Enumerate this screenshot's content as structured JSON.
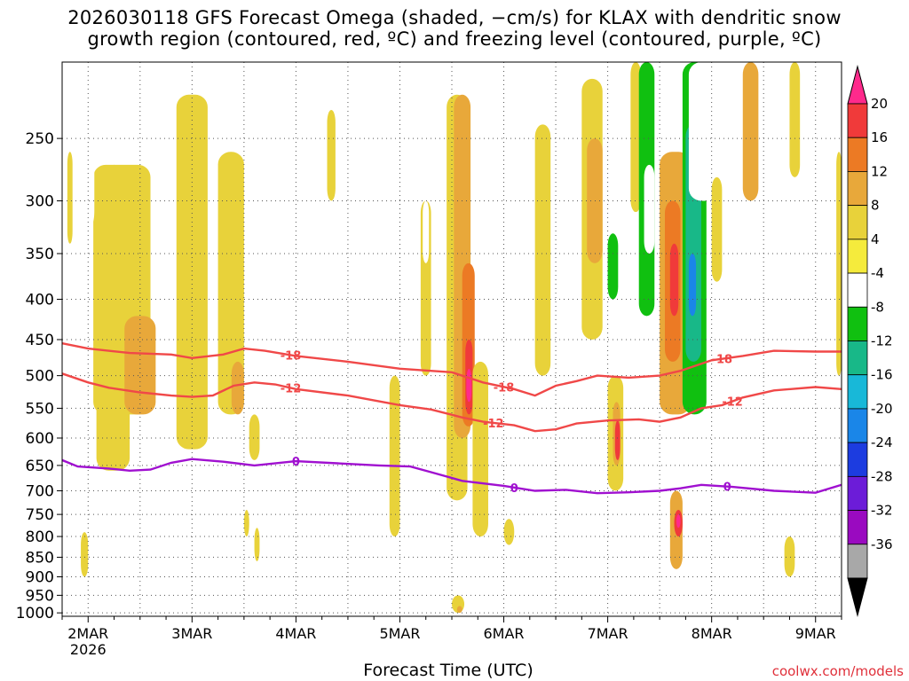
{
  "title": {
    "line1": "2026030118 GFS Forecast Omega (shaded, −cm/s) for KLAX with dendritic snow",
    "line2": "growth region (contoured, red, ºC) and freezing level (contoured, purple, ºC)"
  },
  "xlabel": "Forecast Time (UTC)",
  "credit": "coolwx.com/models",
  "chart_data": {
    "type": "heatmap",
    "title": "2026030118 GFS Forecast Omega (shaded, −cm/s) for KLAX with dendritic snow growth region (contoured, red, ºC) and freezing level (contoured, purple, ºC)",
    "xlabel": "Forecast Time (UTC)",
    "ylabel": "",
    "x_range": [
      1.75,
      9.25
    ],
    "x_unit": "days of March 2026",
    "y_scale": "log-pressure, inverted",
    "y_range_hPa": [
      1010,
      200
    ],
    "grid": true,
    "x_ticks": [
      {
        "value": 2,
        "label": "2MAR",
        "sub": "2026"
      },
      {
        "value": 3,
        "label": "3MAR",
        "sub": ""
      },
      {
        "value": 4,
        "label": "4MAR",
        "sub": ""
      },
      {
        "value": 5,
        "label": "5MAR",
        "sub": ""
      },
      {
        "value": 6,
        "label": "6MAR",
        "sub": ""
      },
      {
        "value": 7,
        "label": "7MAR",
        "sub": ""
      },
      {
        "value": 8,
        "label": "8MAR",
        "sub": ""
      },
      {
        "value": 9,
        "label": "9MAR",
        "sub": ""
      }
    ],
    "y_ticks": [
      250,
      300,
      350,
      400,
      450,
      500,
      550,
      600,
      650,
      700,
      750,
      800,
      850,
      900,
      950,
      1000
    ],
    "colorbar": {
      "levels": [
        "20",
        "16",
        "12",
        "8",
        "4",
        "-4",
        "-8",
        "-12",
        "-16",
        "-20",
        "-24",
        "-28",
        "-32",
        "-36"
      ],
      "colors": [
        "#ff2a8c",
        "#f03a3a",
        "#ec7a24",
        "#e8a83a",
        "#e8d23a",
        "#f5eb3c",
        "#ffffff",
        "#10c010",
        "#18b888",
        "#18b8d8",
        "#1a86e8",
        "#1c3ce0",
        "#6c1cd8",
        "#9a0ac0",
        "#a8a8a8",
        "#000000"
      ]
    },
    "omega_regions": [
      {
        "x": [
          2.08,
          2.4
        ],
        "p": [
          470,
          660
        ],
        "v": 4
      },
      {
        "x": [
          2.2,
          2.3
        ],
        "p": [
          270,
          540
        ],
        "v": 8
      },
      {
        "x": [
          2.15,
          2.3
        ],
        "p": [
          380,
          460
        ],
        "v": 8
      },
      {
        "x": [
          2.05,
          2.6
        ],
        "p": [
          270,
          560
        ],
        "v": 4
      },
      {
        "x": [
          2.35,
          2.65
        ],
        "p": [
          420,
          560
        ],
        "v": 8
      },
      {
        "x": [
          1.93,
          2.0
        ],
        "p": [
          790,
          900
        ],
        "v": 4
      },
      {
        "x": [
          2.22,
          2.3
        ],
        "p": [
          740,
          950
        ],
        "v": -8
      },
      {
        "x": [
          1.8,
          1.85
        ],
        "p": [
          260,
          340
        ],
        "v": 4
      },
      {
        "x": [
          2.02,
          2.06
        ],
        "p": [
          260,
          320
        ],
        "v": -8
      },
      {
        "x": [
          3.0,
          3.08
        ],
        "p": [
          240,
          500
        ],
        "v": -8
      },
      {
        "x": [
          2.85,
          3.15
        ],
        "p": [
          220,
          620
        ],
        "v": 4
      },
      {
        "x": [
          3.25,
          3.5
        ],
        "p": [
          260,
          560
        ],
        "v": 4
      },
      {
        "x": [
          3.38,
          3.5
        ],
        "p": [
          480,
          560
        ],
        "v": 8
      },
      {
        "x": [
          3.55,
          3.65
        ],
        "p": [
          560,
          640
        ],
        "v": 4
      },
      {
        "x": [
          3.5,
          3.55
        ],
        "p": [
          740,
          800
        ],
        "v": 4
      },
      {
        "x": [
          3.6,
          3.65
        ],
        "p": [
          780,
          860
        ],
        "v": 4
      },
      {
        "x": [
          3.65,
          3.72
        ],
        "p": [
          270,
          300
        ],
        "v": -8
      },
      {
        "x": [
          4.15,
          4.22
        ],
        "p": [
          290,
          360
        ],
        "v": -8
      },
      {
        "x": [
          4.3,
          4.38
        ],
        "p": [
          230,
          300
        ],
        "v": 4
      },
      {
        "x": [
          4.9,
          5.0
        ],
        "p": [
          500,
          800
        ],
        "v": 4
      },
      {
        "x": [
          5.0,
          5.08
        ],
        "p": [
          620,
          680
        ],
        "v": -8
      },
      {
        "x": [
          5.2,
          5.3
        ],
        "p": [
          300,
          500
        ],
        "v": 4
      },
      {
        "x": [
          5.22,
          5.28
        ],
        "p": [
          300,
          360
        ],
        "v": -8
      },
      {
        "x": [
          5.35,
          5.5
        ],
        "p": [
          440,
          560
        ],
        "v": -8
      },
      {
        "x": [
          5.45,
          5.65
        ],
        "p": [
          220,
          720
        ],
        "v": 4
      },
      {
        "x": [
          5.52,
          5.68
        ],
        "p": [
          220,
          600
        ],
        "v": 8
      },
      {
        "x": [
          5.6,
          5.72
        ],
        "p": [
          360,
          580
        ],
        "v": 12
      },
      {
        "x": [
          5.63,
          5.7
        ],
        "p": [
          450,
          560
        ],
        "v": 16
      },
      {
        "x": [
          5.64,
          5.69
        ],
        "p": [
          490,
          540
        ],
        "v": 20
      },
      {
        "x": [
          5.7,
          5.85
        ],
        "p": [
          480,
          800
        ],
        "v": 4
      },
      {
        "x": [
          5.52,
          5.6
        ],
        "p": [
          880,
          960
        ],
        "v": -8
      },
      {
        "x": [
          5.5,
          5.62
        ],
        "p": [
          950,
          1000
        ],
        "v": 4
      },
      {
        "x": [
          5.55,
          5.6
        ],
        "p": [
          980,
          1000
        ],
        "v": 8
      },
      {
        "x": [
          6.0,
          6.1
        ],
        "p": [
          760,
          820
        ],
        "v": 4
      },
      {
        "x": [
          6.3,
          6.45
        ],
        "p": [
          240,
          500
        ],
        "v": 4
      },
      {
        "x": [
          6.45,
          6.5
        ],
        "p": [
          880,
          940
        ],
        "v": -8
      },
      {
        "x": [
          6.75,
          6.95
        ],
        "p": [
          210,
          450
        ],
        "v": 4
      },
      {
        "x": [
          6.8,
          6.95
        ],
        "p": [
          250,
          360
        ],
        "v": 8
      },
      {
        "x": [
          6.98,
          7.3
        ],
        "p": [
          260,
          410
        ],
        "v": -8
      },
      {
        "x": [
          7.0,
          7.1
        ],
        "p": [
          330,
          400
        ],
        "v": -12
      },
      {
        "x": [
          7.0,
          7.15
        ],
        "p": [
          500,
          700
        ],
        "v": 4
      },
      {
        "x": [
          7.05,
          7.12
        ],
        "p": [
          540,
          650
        ],
        "v": 8
      },
      {
        "x": [
          7.07,
          7.12
        ],
        "p": [
          570,
          640
        ],
        "v": 16
      },
      {
        "x": [
          7.22,
          7.32
        ],
        "p": [
          200,
          310
        ],
        "v": 4
      },
      {
        "x": [
          7.3,
          7.45
        ],
        "p": [
          200,
          420
        ],
        "v": -12
      },
      {
        "x": [
          7.35,
          7.45
        ],
        "p": [
          270,
          350
        ],
        "v": -8
      },
      {
        "x": [
          7.5,
          7.8
        ],
        "p": [
          260,
          560
        ],
        "v": 8
      },
      {
        "x": [
          7.55,
          7.7
        ],
        "p": [
          300,
          480
        ],
        "v": 12
      },
      {
        "x": [
          7.6,
          7.68
        ],
        "p": [
          340,
          420
        ],
        "v": 16
      },
      {
        "x": [
          7.72,
          7.95
        ],
        "p": [
          200,
          560
        ],
        "v": -12
      },
      {
        "x": [
          7.75,
          7.9
        ],
        "p": [
          240,
          480
        ],
        "v": -16
      },
      {
        "x": [
          7.78,
          7.85
        ],
        "p": [
          350,
          420
        ],
        "v": -24
      },
      {
        "x": [
          7.78,
          8.05
        ],
        "p": [
          200,
          300
        ],
        "v": -8
      },
      {
        "x": [
          8.0,
          8.1
        ],
        "p": [
          280,
          380
        ],
        "v": 4
      },
      {
        "x": [
          8.3,
          8.45
        ],
        "p": [
          200,
          300
        ],
        "v": 8
      },
      {
        "x": [
          8.4,
          8.55
        ],
        "p": [
          400,
          470
        ],
        "v": -8
      },
      {
        "x": [
          8.55,
          8.62
        ],
        "p": [
          420,
          460
        ],
        "v": -8
      },
      {
        "x": [
          8.75,
          8.85
        ],
        "p": [
          200,
          280
        ],
        "v": 4
      },
      {
        "x": [
          9.2,
          9.25
        ],
        "p": [
          260,
          500
        ],
        "v": 4
      },
      {
        "x": [
          7.4,
          7.45
        ],
        "p": [
          640,
          760
        ],
        "v": -8
      },
      {
        "x": [
          7.5,
          7.55
        ],
        "p": [
          760,
          820
        ],
        "v": -8
      },
      {
        "x": [
          7.6,
          7.72
        ],
        "p": [
          700,
          880
        ],
        "v": 8
      },
      {
        "x": [
          7.64,
          7.72
        ],
        "p": [
          740,
          800
        ],
        "v": 16
      },
      {
        "x": [
          7.66,
          7.7
        ],
        "p": [
          750,
          780
        ],
        "v": 20
      },
      {
        "x": [
          7.72,
          7.82
        ],
        "p": [
          880,
          960
        ],
        "v": -8
      },
      {
        "x": [
          8.05,
          8.15
        ],
        "p": [
          600,
          640
        ],
        "v": -8
      },
      {
        "x": [
          8.7,
          8.8
        ],
        "p": [
          800,
          900
        ],
        "v": 4
      }
    ],
    "contours": [
      {
        "label": "-18",
        "color": "#f04848",
        "label_at": [
          3.95,
          6.0,
          8.1
        ],
        "points": [
          [
            1.75,
            455
          ],
          [
            2.0,
            462
          ],
          [
            2.4,
            468
          ],
          [
            2.8,
            470
          ],
          [
            3.0,
            475
          ],
          [
            3.3,
            470
          ],
          [
            3.5,
            462
          ],
          [
            3.7,
            465
          ],
          [
            4.0,
            472
          ],
          [
            4.5,
            480
          ],
          [
            5.0,
            490
          ],
          [
            5.5,
            495
          ],
          [
            5.8,
            510
          ],
          [
            6.1,
            520
          ],
          [
            6.3,
            530
          ],
          [
            6.5,
            515
          ],
          [
            6.7,
            508
          ],
          [
            6.9,
            500
          ],
          [
            7.2,
            503
          ],
          [
            7.5,
            500
          ],
          [
            7.7,
            493
          ],
          [
            8.0,
            478
          ],
          [
            8.3,
            472
          ],
          [
            8.6,
            465
          ],
          [
            9.0,
            466
          ],
          [
            9.25,
            466
          ]
        ]
      },
      {
        "label": "-12",
        "color": "#f04848",
        "label_at": [
          3.95,
          5.9,
          8.2
        ],
        "points": [
          [
            1.75,
            497
          ],
          [
            2.0,
            510
          ],
          [
            2.2,
            518
          ],
          [
            2.5,
            525
          ],
          [
            2.8,
            530
          ],
          [
            3.0,
            532
          ],
          [
            3.2,
            530
          ],
          [
            3.4,
            515
          ],
          [
            3.6,
            510
          ],
          [
            3.8,
            513
          ],
          [
            4.0,
            520
          ],
          [
            4.5,
            530
          ],
          [
            5.0,
            545
          ],
          [
            5.3,
            552
          ],
          [
            5.6,
            565
          ],
          [
            5.8,
            572
          ],
          [
            6.1,
            578
          ],
          [
            6.3,
            588
          ],
          [
            6.5,
            585
          ],
          [
            6.7,
            575
          ],
          [
            7.0,
            570
          ],
          [
            7.3,
            568
          ],
          [
            7.5,
            572
          ],
          [
            7.7,
            565
          ],
          [
            7.9,
            550
          ],
          [
            8.1,
            545
          ],
          [
            8.3,
            533
          ],
          [
            8.6,
            522
          ],
          [
            9.0,
            517
          ],
          [
            9.25,
            520
          ]
        ]
      },
      {
        "label": "0",
        "color": "#a010d0",
        "label_at": [
          4.0,
          6.1,
          8.15
        ],
        "points": [
          [
            1.75,
            640
          ],
          [
            1.9,
            652
          ],
          [
            2.2,
            656
          ],
          [
            2.4,
            660
          ],
          [
            2.6,
            658
          ],
          [
            2.8,
            645
          ],
          [
            3.0,
            638
          ],
          [
            3.3,
            643
          ],
          [
            3.6,
            650
          ],
          [
            4.0,
            642
          ],
          [
            4.4,
            646
          ],
          [
            4.8,
            650
          ],
          [
            5.1,
            652
          ],
          [
            5.3,
            663
          ],
          [
            5.6,
            680
          ],
          [
            6.0,
            690
          ],
          [
            6.3,
            700
          ],
          [
            6.6,
            698
          ],
          [
            6.9,
            705
          ],
          [
            7.2,
            703
          ],
          [
            7.5,
            700
          ],
          [
            7.7,
            695
          ],
          [
            7.9,
            688
          ],
          [
            8.2,
            692
          ],
          [
            8.6,
            700
          ],
          [
            9.0,
            704
          ],
          [
            9.25,
            688
          ]
        ]
      }
    ]
  }
}
